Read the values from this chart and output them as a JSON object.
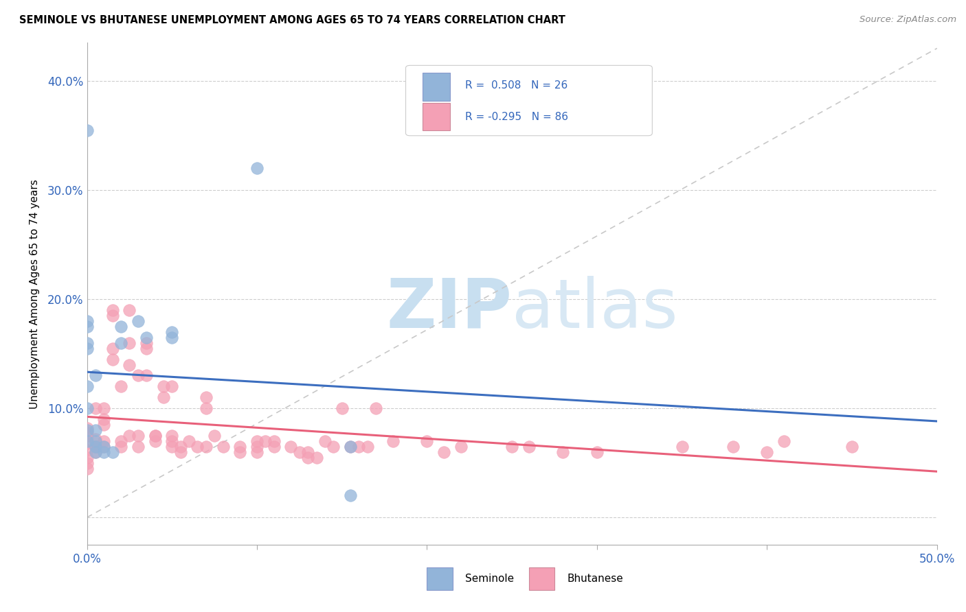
{
  "title": "SEMINOLE VS BHUTANESE UNEMPLOYMENT AMONG AGES 65 TO 74 YEARS CORRELATION CHART",
  "source": "Source: ZipAtlas.com",
  "ylabel": "Unemployment Among Ages 65 to 74 years",
  "yticks_labels": [
    "",
    "10.0%",
    "20.0%",
    "30.0%",
    "40.0%"
  ],
  "ytick_vals": [
    0.0,
    0.1,
    0.2,
    0.3,
    0.4
  ],
  "xlim": [
    0.0,
    0.5
  ],
  "ylim": [
    -0.025,
    0.435
  ],
  "seminole_color": "#92b4d9",
  "bhutanese_color": "#f4a0b5",
  "seminole_line_color": "#3c6ebf",
  "bhutanese_line_color": "#e8607a",
  "diagonal_color": "#c8c8c8",
  "seminole_points": [
    [
      0.0,
      0.355
    ],
    [
      0.0,
      0.07
    ],
    [
      0.0,
      0.08
    ],
    [
      0.0,
      0.16
    ],
    [
      0.0,
      0.18
    ],
    [
      0.0,
      0.175
    ],
    [
      0.0,
      0.12
    ],
    [
      0.0,
      0.155
    ],
    [
      0.0,
      0.1
    ],
    [
      0.005,
      0.13
    ],
    [
      0.005,
      0.08
    ],
    [
      0.005,
      0.065
    ],
    [
      0.005,
      0.07
    ],
    [
      0.005,
      0.06
    ],
    [
      0.01,
      0.065
    ],
    [
      0.01,
      0.06
    ],
    [
      0.015,
      0.06
    ],
    [
      0.02,
      0.175
    ],
    [
      0.02,
      0.16
    ],
    [
      0.03,
      0.18
    ],
    [
      0.035,
      0.165
    ],
    [
      0.05,
      0.165
    ],
    [
      0.05,
      0.17
    ],
    [
      0.1,
      0.32
    ],
    [
      0.155,
      0.065
    ],
    [
      0.155,
      0.02
    ]
  ],
  "bhutanese_points": [
    [
      0.0,
      0.075
    ],
    [
      0.0,
      0.068
    ],
    [
      0.0,
      0.078
    ],
    [
      0.0,
      0.082
    ],
    [
      0.0,
      0.062
    ],
    [
      0.0,
      0.055
    ],
    [
      0.0,
      0.05
    ],
    [
      0.0,
      0.045
    ],
    [
      0.005,
      0.1
    ],
    [
      0.005,
      0.072
    ],
    [
      0.005,
      0.065
    ],
    [
      0.005,
      0.06
    ],
    [
      0.005,
      0.065
    ],
    [
      0.01,
      0.085
    ],
    [
      0.01,
      0.09
    ],
    [
      0.01,
      0.07
    ],
    [
      0.01,
      0.065
    ],
    [
      0.01,
      0.1
    ],
    [
      0.015,
      0.19
    ],
    [
      0.015,
      0.185
    ],
    [
      0.015,
      0.155
    ],
    [
      0.015,
      0.145
    ],
    [
      0.02,
      0.07
    ],
    [
      0.02,
      0.12
    ],
    [
      0.02,
      0.065
    ],
    [
      0.025,
      0.16
    ],
    [
      0.025,
      0.14
    ],
    [
      0.025,
      0.19
    ],
    [
      0.025,
      0.075
    ],
    [
      0.03,
      0.13
    ],
    [
      0.03,
      0.065
    ],
    [
      0.03,
      0.075
    ],
    [
      0.035,
      0.16
    ],
    [
      0.035,
      0.155
    ],
    [
      0.035,
      0.13
    ],
    [
      0.04,
      0.07
    ],
    [
      0.04,
      0.075
    ],
    [
      0.04,
      0.075
    ],
    [
      0.045,
      0.11
    ],
    [
      0.045,
      0.12
    ],
    [
      0.05,
      0.12
    ],
    [
      0.05,
      0.065
    ],
    [
      0.05,
      0.07
    ],
    [
      0.05,
      0.075
    ],
    [
      0.055,
      0.065
    ],
    [
      0.055,
      0.06
    ],
    [
      0.06,
      0.07
    ],
    [
      0.065,
      0.065
    ],
    [
      0.07,
      0.065
    ],
    [
      0.07,
      0.11
    ],
    [
      0.07,
      0.1
    ],
    [
      0.075,
      0.075
    ],
    [
      0.08,
      0.065
    ],
    [
      0.09,
      0.065
    ],
    [
      0.09,
      0.06
    ],
    [
      0.1,
      0.06
    ],
    [
      0.1,
      0.065
    ],
    [
      0.1,
      0.07
    ],
    [
      0.105,
      0.07
    ],
    [
      0.11,
      0.07
    ],
    [
      0.11,
      0.065
    ],
    [
      0.12,
      0.065
    ],
    [
      0.125,
      0.06
    ],
    [
      0.13,
      0.06
    ],
    [
      0.13,
      0.055
    ],
    [
      0.135,
      0.055
    ],
    [
      0.14,
      0.07
    ],
    [
      0.145,
      0.065
    ],
    [
      0.15,
      0.1
    ],
    [
      0.155,
      0.065
    ],
    [
      0.16,
      0.065
    ],
    [
      0.165,
      0.065
    ],
    [
      0.17,
      0.1
    ],
    [
      0.18,
      0.07
    ],
    [
      0.2,
      0.07
    ],
    [
      0.21,
      0.06
    ],
    [
      0.22,
      0.065
    ],
    [
      0.25,
      0.065
    ],
    [
      0.26,
      0.065
    ],
    [
      0.28,
      0.06
    ],
    [
      0.3,
      0.06
    ],
    [
      0.35,
      0.065
    ],
    [
      0.38,
      0.065
    ],
    [
      0.4,
      0.06
    ],
    [
      0.41,
      0.07
    ],
    [
      0.45,
      0.065
    ]
  ]
}
